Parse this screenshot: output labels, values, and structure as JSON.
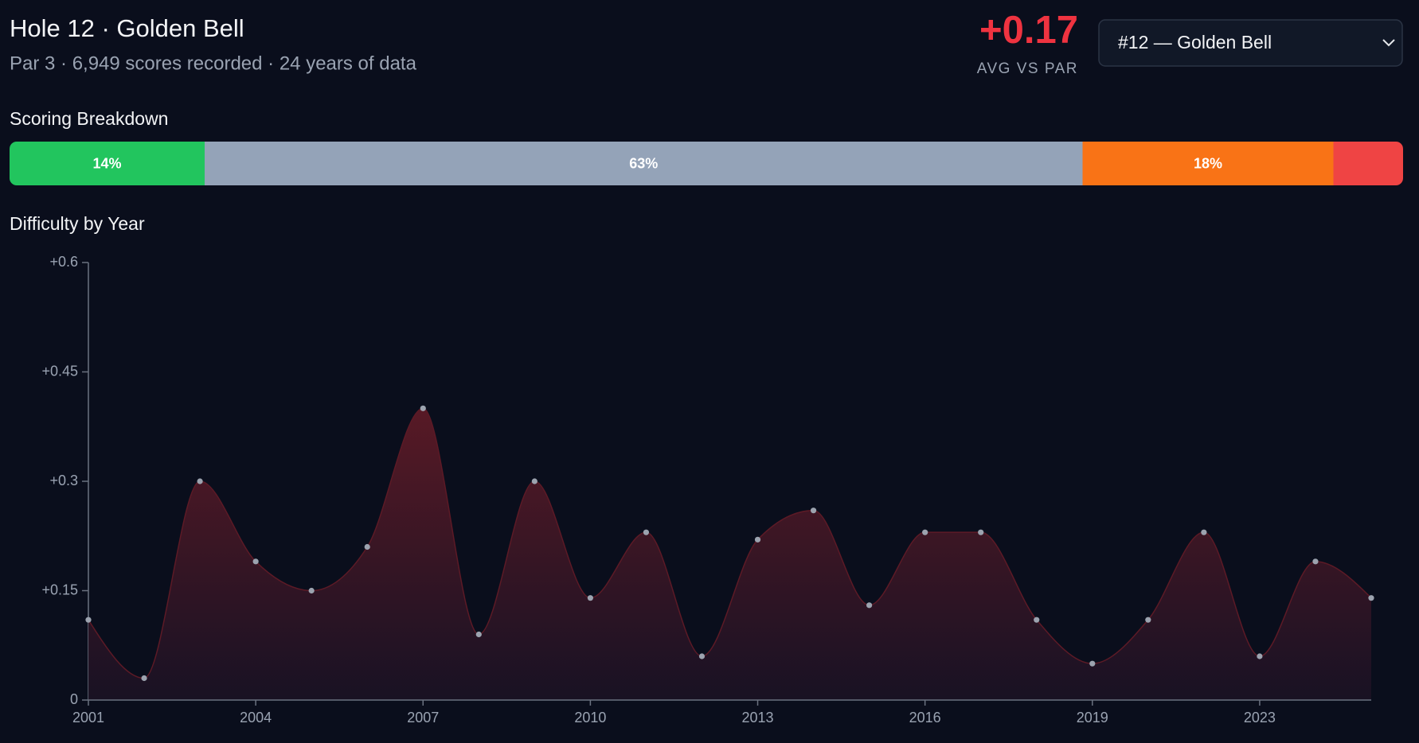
{
  "header": {
    "title": "Hole 12 · Golden Bell",
    "subtitle": "Par 3 · 6,949 scores recorded · 24 years of data",
    "stat": "+0.17",
    "stat_label": "AVG VS PAR",
    "select": "#12 — Golden Bell"
  },
  "breakdown": {
    "type": "stacked_bar",
    "title": "Scoring Breakdown",
    "values": [
      14,
      63,
      18,
      5
    ],
    "value_labels": [
      "14%",
      "63%",
      "18%",
      null
    ],
    "colors": [
      "#22c55e",
      "#94a3b8",
      "#f97316",
      "#ef4444"
    ]
  },
  "chart_data": {
    "type": "area",
    "title": "Difficulty by Year",
    "categories": [
      "2001",
      null,
      null,
      "2004",
      null,
      null,
      "2007",
      null,
      null,
      "2010",
      null,
      null,
      "2013",
      null,
      null,
      "2016",
      null,
      null,
      "2019",
      null,
      null,
      "2023",
      null,
      null
    ],
    "values": [
      0.11,
      0.03,
      0.3,
      0.19,
      0.15,
      0.21,
      0.4,
      0.09,
      0.3,
      0.14,
      0.23,
      0.06,
      0.22,
      0.26,
      0.13,
      0.23,
      0.23,
      0.11,
      0.05,
      0.11,
      0.23,
      0.06,
      0.19,
      0.14
    ],
    "color": "#5c1a26",
    "marker_color": "#9ca3af",
    "ylim": [
      0,
      0.6
    ],
    "yticks": [
      0,
      {
        "value": 0.15,
        "label": "+0.15"
      },
      {
        "value": 0.3,
        "label": "+0.3"
      },
      {
        "value": 0.45,
        "label": "+0.45"
      },
      {
        "value": 0.6,
        "label": "+0.6"
      }
    ]
  }
}
